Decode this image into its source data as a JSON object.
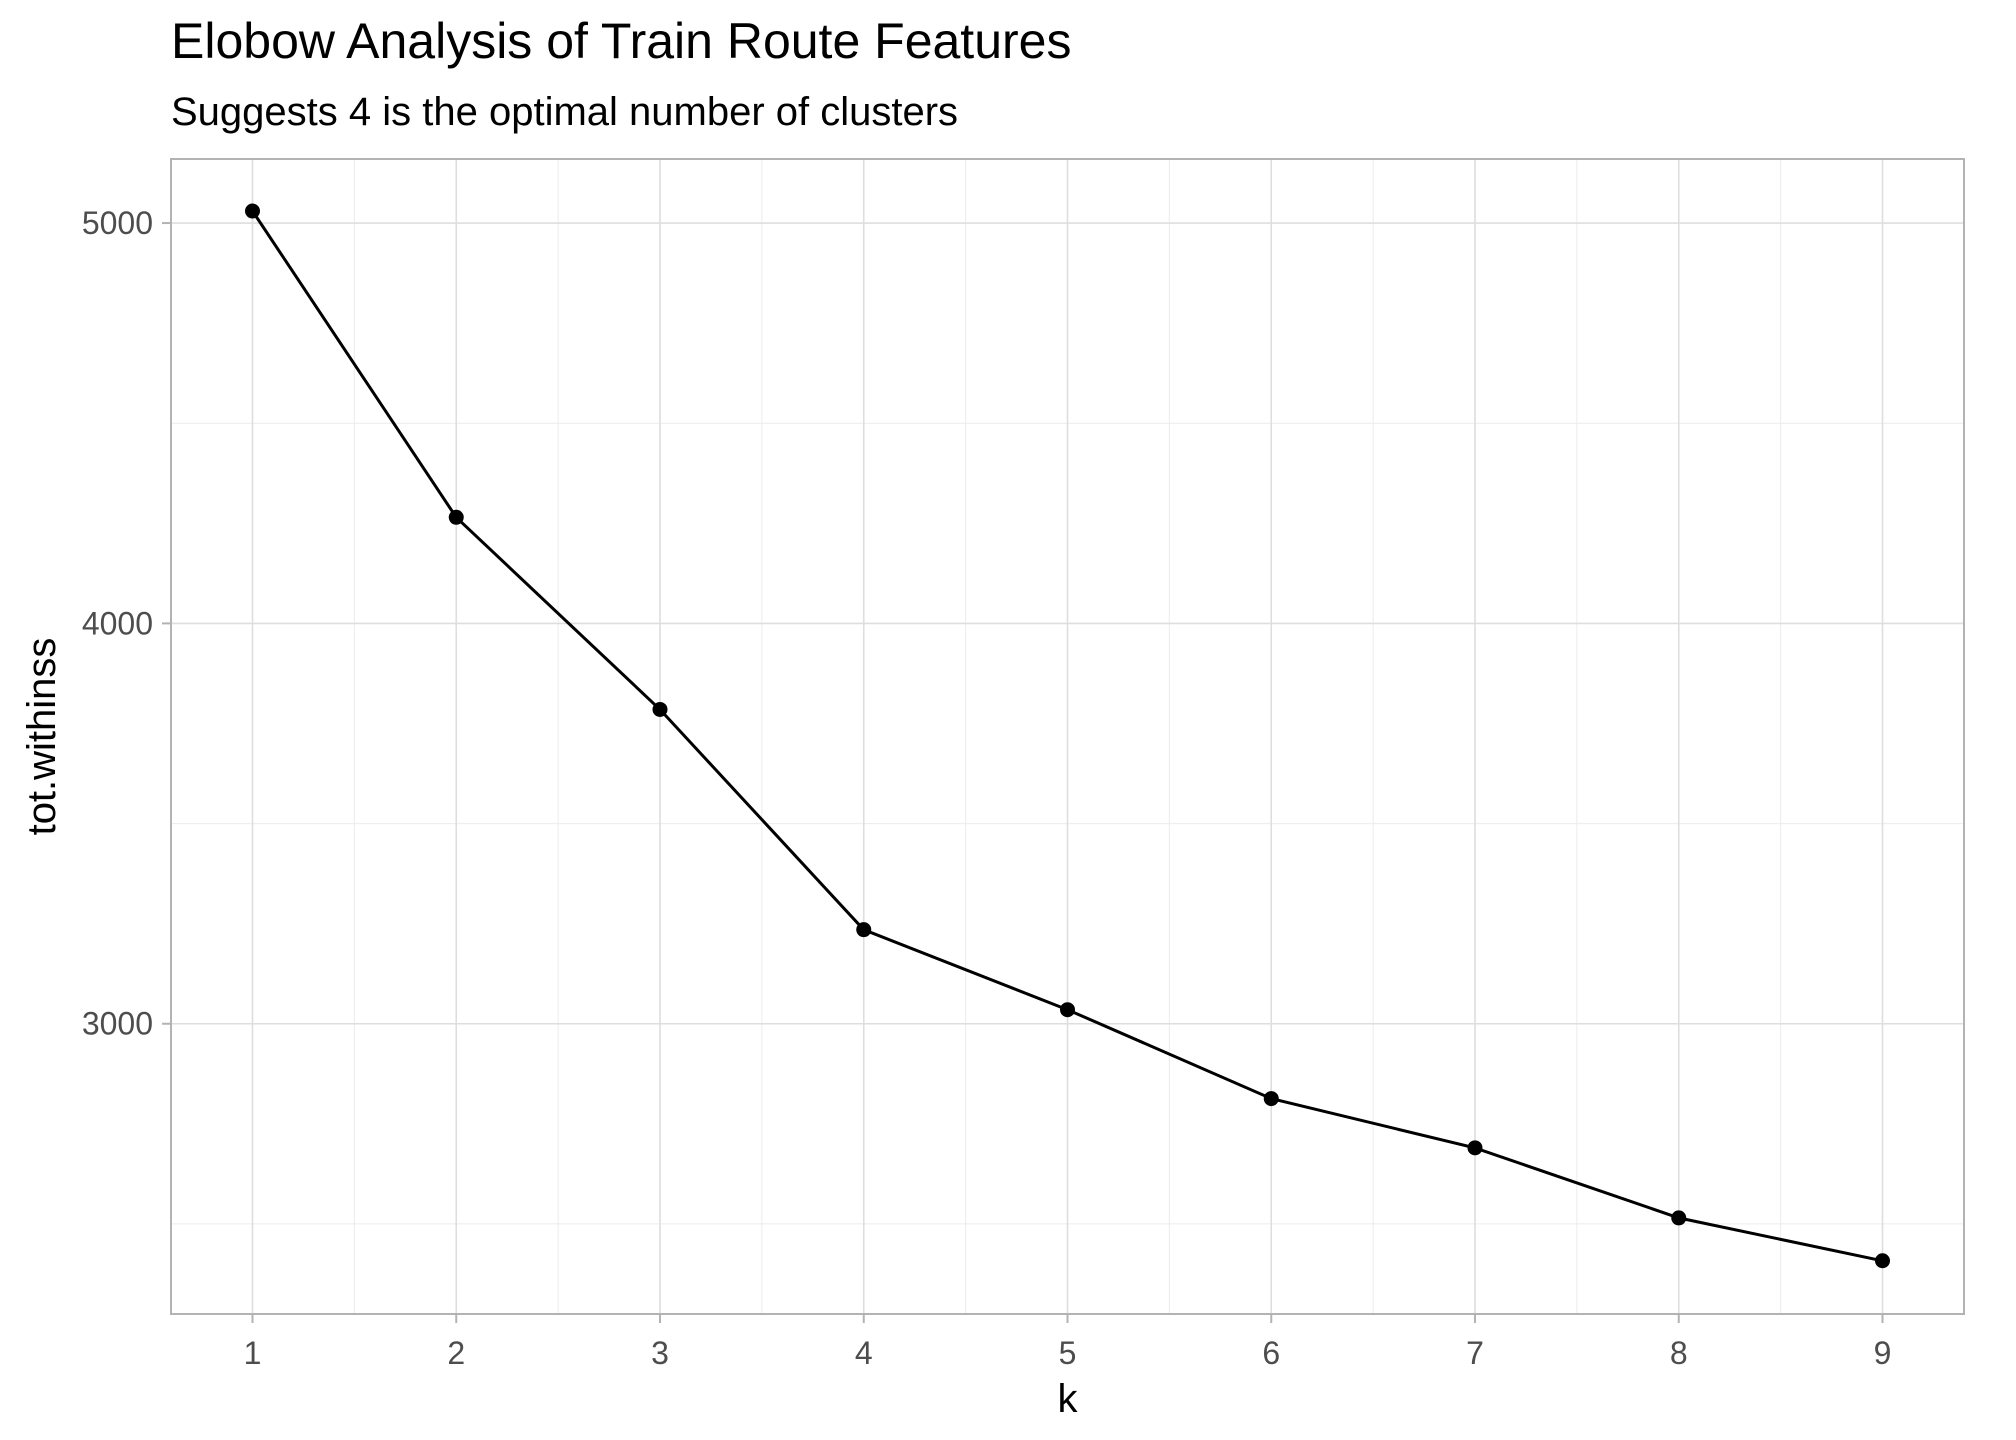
{
  "chart_data": {
    "type": "line",
    "title": "Elobow Analysis of Train Route Features",
    "subtitle": "Suggests 4 is the optimal number of clusters",
    "xlabel": "k",
    "ylabel": "tot.withinss",
    "x": [
      1,
      2,
      3,
      4,
      5,
      6,
      7,
      8,
      9
    ],
    "y": [
      5030,
      4265,
      3785,
      3235,
      3035,
      2813,
      2690,
      2515,
      2408
    ],
    "xlim": [
      0.6,
      9.4
    ],
    "ylim": [
      2275,
      5160
    ],
    "x_ticks": [
      "1",
      "2",
      "3",
      "4",
      "5",
      "6",
      "7",
      "8",
      "9"
    ],
    "y_ticks": [
      3000,
      4000,
      5000
    ],
    "y_tick_labels": [
      "3000",
      "4000",
      "5000"
    ],
    "y_minor_ticks": [
      2500,
      3500,
      4500
    ],
    "grid": true,
    "legend": "none",
    "colors": {
      "line": "#000000",
      "point": "#000000",
      "grid_major": "#dedede",
      "grid_minor": "#ececec",
      "border": "#b3b3b3"
    }
  }
}
